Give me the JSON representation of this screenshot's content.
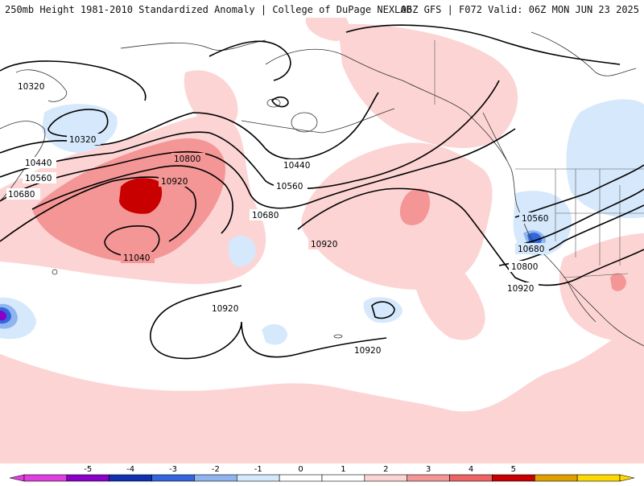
{
  "header": {
    "title_left": "250mb Height 1981-2010 Standardized Anomaly | College of DuPage NEXLAB",
    "title_right": "06Z GFS | F072 Valid: 06Z MON JUN 23 2025"
  },
  "contour_labels": [
    {
      "id": "c10320a",
      "text": "10320"
    },
    {
      "id": "c10320b",
      "text": "10320"
    },
    {
      "id": "c10440a",
      "text": "10440"
    },
    {
      "id": "c10440b",
      "text": "10440"
    },
    {
      "id": "c10560a",
      "text": "10560"
    },
    {
      "id": "c10560b",
      "text": "10560"
    },
    {
      "id": "c10560c",
      "text": "10560"
    },
    {
      "id": "c10680a",
      "text": "10680"
    },
    {
      "id": "c10680b",
      "text": "10680"
    },
    {
      "id": "c10680c",
      "text": "10680"
    },
    {
      "id": "c10800a",
      "text": "10800"
    },
    {
      "id": "c10800b",
      "text": "10800"
    },
    {
      "id": "c10920a",
      "text": "10920"
    },
    {
      "id": "c10920b",
      "text": "10920"
    },
    {
      "id": "c10920c",
      "text": "10920"
    },
    {
      "id": "c10920d",
      "text": "10920"
    },
    {
      "id": "c10920e",
      "text": "10920"
    },
    {
      "id": "c11040a",
      "text": "11040"
    }
  ],
  "colorbar": {
    "ticks": [
      "-5",
      "-4",
      "-3",
      "-2",
      "-1",
      "0",
      "1",
      "2",
      "3",
      "4",
      "5"
    ],
    "colors": [
      "#e040e0",
      "#8a00c8",
      "#1030b0",
      "#3366dd",
      "#8fb4f0",
      "#d6e8fb",
      "#ffffff",
      "#ffffff",
      "#fcd4d4",
      "#f49696",
      "#ee6464",
      "#c80000",
      "#e0a000",
      "#ffd800"
    ]
  },
  "colors": {
    "anomaly_pos1": "#fcd4d4",
    "anomaly_pos2": "#f49696",
    "anomaly_pos3": "#ee6464",
    "anomaly_pos4": "#c80000",
    "anomaly_neg1": "#d6e8fb",
    "anomaly_neg2": "#8fb4f0",
    "anomaly_neg3": "#3366dd",
    "anomaly_neg5": "#8a00c8",
    "contour": "#000000",
    "coastline": "#333333"
  }
}
